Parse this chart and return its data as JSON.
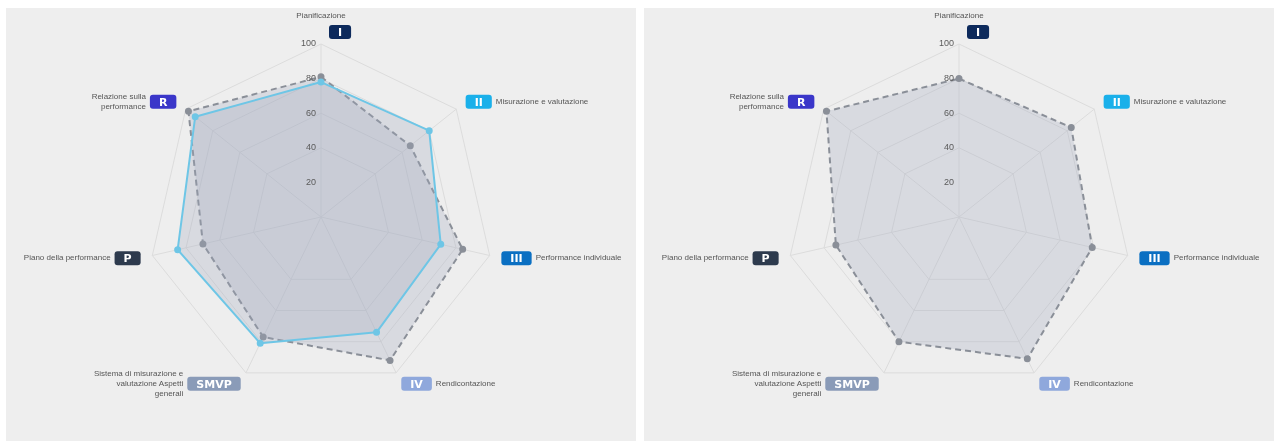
{
  "chart_data": [
    {
      "type": "radar",
      "categories": [
        "Pianificazione",
        "Misurazione e valutazione",
        "Performance individuale",
        "Rendicontazione",
        "Sistema di misurazione e valutazione Aspetti generali",
        "Piano della performance",
        "Relazione sulla performance"
      ],
      "series": [
        {
          "color": "#6ec6e6",
          "values": [
            78,
            80,
            71,
            74,
            81,
            85,
            93
          ],
          "line_style": "solid"
        },
        {
          "color": "#8a8f98",
          "values": [
            81,
            66,
            84,
            92,
            77,
            70,
            98
          ],
          "line_style": "dashed"
        }
      ],
      "ylim": [
        0,
        100
      ],
      "yticks": [
        20,
        40,
        60,
        80,
        100
      ],
      "grid": true,
      "marker": "circle",
      "annotations": [
        {
          "text": "I",
          "x": "Pianificazione"
        },
        {
          "text": "II",
          "x": "Misurazione e valutazione"
        },
        {
          "text": "III",
          "x": "Performance individuale"
        },
        {
          "text": "IV",
          "x": "Rendicontazione"
        },
        {
          "text": "SMVP",
          "x": "Sistema di misurazione e valutazione Aspetti generali"
        },
        {
          "text": "P",
          "x": "Piano della performance"
        },
        {
          "text": "R",
          "x": "Relazione sulla performance"
        }
      ]
    },
    {
      "type": "radar",
      "categories": [
        "Pianificazione",
        "Misurazione e valutazione",
        "Performance individuale",
        "Rendicontazione",
        "Sistema di misurazione e valutazione Aspetti generali",
        "Piano della performance",
        "Relazione sulla performance"
      ],
      "series": [
        {
          "color": "#8a8f98",
          "values": [
            80,
            83,
            79,
            91,
            80,
            73,
            98
          ],
          "line_style": "dashed"
        }
      ],
      "ylim": [
        0,
        100
      ],
      "yticks": [
        20,
        40,
        60,
        80,
        100
      ],
      "grid": true,
      "marker": "circle",
      "annotations": [
        {
          "text": "I",
          "x": "Pianificazione"
        },
        {
          "text": "II",
          "x": "Misurazione e valutazione"
        },
        {
          "text": "III",
          "x": "Performance individuale"
        },
        {
          "text": "IV",
          "x": "Rendicontazione"
        },
        {
          "text": "SMVP",
          "x": "Sistema di misurazione e valutazione Aspetti generali"
        },
        {
          "text": "P",
          "x": "Piano della performance"
        },
        {
          "text": "R",
          "x": "Relazione sulla performance"
        }
      ]
    }
  ]
}
